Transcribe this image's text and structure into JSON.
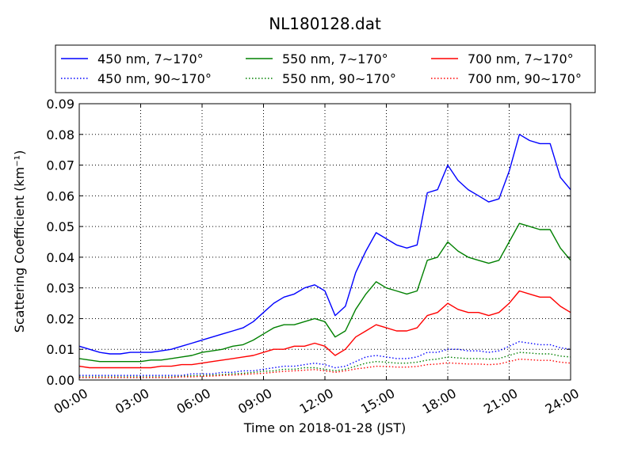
{
  "chart_data": {
    "type": "line",
    "title": "NL180128.dat",
    "xlabel": "Time on 2018-01-28 (JST)",
    "ylabel": "Scattering Coefficient (km⁻¹)",
    "xlim": [
      0,
      24
    ],
    "ylim": [
      0,
      0.09
    ],
    "xticks": [
      "00:00",
      "03:00",
      "06:00",
      "09:00",
      "12:00",
      "15:00",
      "18:00",
      "21:00",
      "24:00"
    ],
    "yticks": [
      "0.00",
      "0.01",
      "0.02",
      "0.03",
      "0.04",
      "0.05",
      "0.06",
      "0.07",
      "0.08",
      "0.09"
    ],
    "grid": true,
    "legend_position": "top",
    "x": [
      0,
      0.5,
      1,
      1.5,
      2,
      2.5,
      3,
      3.5,
      4,
      4.5,
      5,
      5.5,
      6,
      6.5,
      7,
      7.5,
      8,
      8.5,
      9,
      9.5,
      10,
      10.5,
      11,
      11.5,
      12,
      12.5,
      13,
      13.5,
      14,
      14.5,
      15,
      15.5,
      16,
      16.5,
      17,
      17.5,
      18,
      18.5,
      19,
      19.5,
      20,
      20.5,
      21,
      21.5,
      22,
      22.5,
      23,
      23.5,
      24
    ],
    "series": [
      {
        "name": "450 nm, 7∼170°",
        "color": "#0000ff",
        "dash": "solid",
        "values": [
          0.011,
          0.01,
          0.009,
          0.0085,
          0.0085,
          0.009,
          0.009,
          0.009,
          0.0095,
          0.01,
          0.011,
          0.012,
          0.013,
          0.014,
          0.015,
          0.016,
          0.017,
          0.019,
          0.022,
          0.025,
          0.027,
          0.028,
          0.03,
          0.031,
          0.029,
          0.021,
          0.024,
          0.035,
          0.042,
          0.048,
          0.046,
          0.044,
          0.043,
          0.044,
          0.061,
          0.062,
          0.07,
          0.065,
          0.062,
          0.06,
          0.058,
          0.059,
          0.068,
          0.08,
          0.078,
          0.077,
          0.077,
          0.066,
          0.062
        ]
      },
      {
        "name": "550 nm, 7∼170°",
        "color": "#008000",
        "dash": "solid",
        "values": [
          0.007,
          0.0065,
          0.006,
          0.006,
          0.006,
          0.006,
          0.006,
          0.0065,
          0.0065,
          0.007,
          0.0075,
          0.008,
          0.009,
          0.0095,
          0.01,
          0.011,
          0.0115,
          0.013,
          0.015,
          0.017,
          0.018,
          0.018,
          0.019,
          0.02,
          0.019,
          0.014,
          0.016,
          0.023,
          0.028,
          0.032,
          0.03,
          0.029,
          0.028,
          0.029,
          0.039,
          0.04,
          0.045,
          0.042,
          0.04,
          0.039,
          0.038,
          0.039,
          0.045,
          0.051,
          0.05,
          0.049,
          0.049,
          0.043,
          0.039
        ]
      },
      {
        "name": "700 nm, 7∼170°",
        "color": "#ff0000",
        "dash": "solid",
        "values": [
          0.0045,
          0.004,
          0.004,
          0.004,
          0.004,
          0.004,
          0.004,
          0.004,
          0.0045,
          0.0045,
          0.005,
          0.005,
          0.0055,
          0.006,
          0.0065,
          0.007,
          0.0075,
          0.008,
          0.009,
          0.01,
          0.01,
          0.011,
          0.011,
          0.012,
          0.011,
          0.008,
          0.01,
          0.014,
          0.016,
          0.018,
          0.017,
          0.016,
          0.016,
          0.017,
          0.021,
          0.022,
          0.025,
          0.023,
          0.022,
          0.022,
          0.021,
          0.022,
          0.025,
          0.029,
          0.028,
          0.027,
          0.027,
          0.024,
          0.022
        ]
      },
      {
        "name": "450 nm, 90∼170°",
        "color": "#0000ff",
        "dash": "dotted",
        "values": [
          0.0015,
          0.0015,
          0.0015,
          0.0015,
          0.0015,
          0.0015,
          0.0015,
          0.0015,
          0.0015,
          0.0015,
          0.0015,
          0.002,
          0.002,
          0.002,
          0.0025,
          0.0025,
          0.003,
          0.003,
          0.0035,
          0.004,
          0.0045,
          0.0045,
          0.005,
          0.0055,
          0.005,
          0.004,
          0.0045,
          0.006,
          0.0075,
          0.008,
          0.0075,
          0.007,
          0.007,
          0.0075,
          0.009,
          0.009,
          0.01,
          0.01,
          0.0095,
          0.0095,
          0.009,
          0.0095,
          0.011,
          0.0125,
          0.012,
          0.0115,
          0.0115,
          0.0105,
          0.01
        ]
      },
      {
        "name": "550 nm, 90∼170°",
        "color": "#008000",
        "dash": "dotted",
        "values": [
          0.001,
          0.001,
          0.001,
          0.001,
          0.001,
          0.001,
          0.001,
          0.001,
          0.001,
          0.001,
          0.0012,
          0.0014,
          0.0015,
          0.0016,
          0.0018,
          0.002,
          0.0022,
          0.0025,
          0.0028,
          0.003,
          0.0035,
          0.0035,
          0.004,
          0.004,
          0.0035,
          0.003,
          0.0035,
          0.0045,
          0.0055,
          0.006,
          0.0058,
          0.0055,
          0.0055,
          0.0058,
          0.0065,
          0.0068,
          0.0075,
          0.0072,
          0.007,
          0.007,
          0.0068,
          0.007,
          0.008,
          0.009,
          0.0088,
          0.0085,
          0.0085,
          0.0078,
          0.0075
        ]
      },
      {
        "name": "700 nm, 90∼170°",
        "color": "#ff0000",
        "dash": "dotted",
        "values": [
          0.0008,
          0.0008,
          0.0008,
          0.0008,
          0.0008,
          0.0008,
          0.0008,
          0.0008,
          0.0008,
          0.0008,
          0.001,
          0.001,
          0.0012,
          0.0013,
          0.0015,
          0.0016,
          0.0018,
          0.002,
          0.0022,
          0.0025,
          0.0028,
          0.003,
          0.0032,
          0.0034,
          0.003,
          0.0025,
          0.003,
          0.0036,
          0.004,
          0.0045,
          0.0044,
          0.0042,
          0.0042,
          0.0044,
          0.005,
          0.0052,
          0.0056,
          0.0054,
          0.0052,
          0.0052,
          0.005,
          0.0052,
          0.006,
          0.0068,
          0.0066,
          0.0064,
          0.0064,
          0.0058,
          0.0055
        ]
      }
    ]
  }
}
